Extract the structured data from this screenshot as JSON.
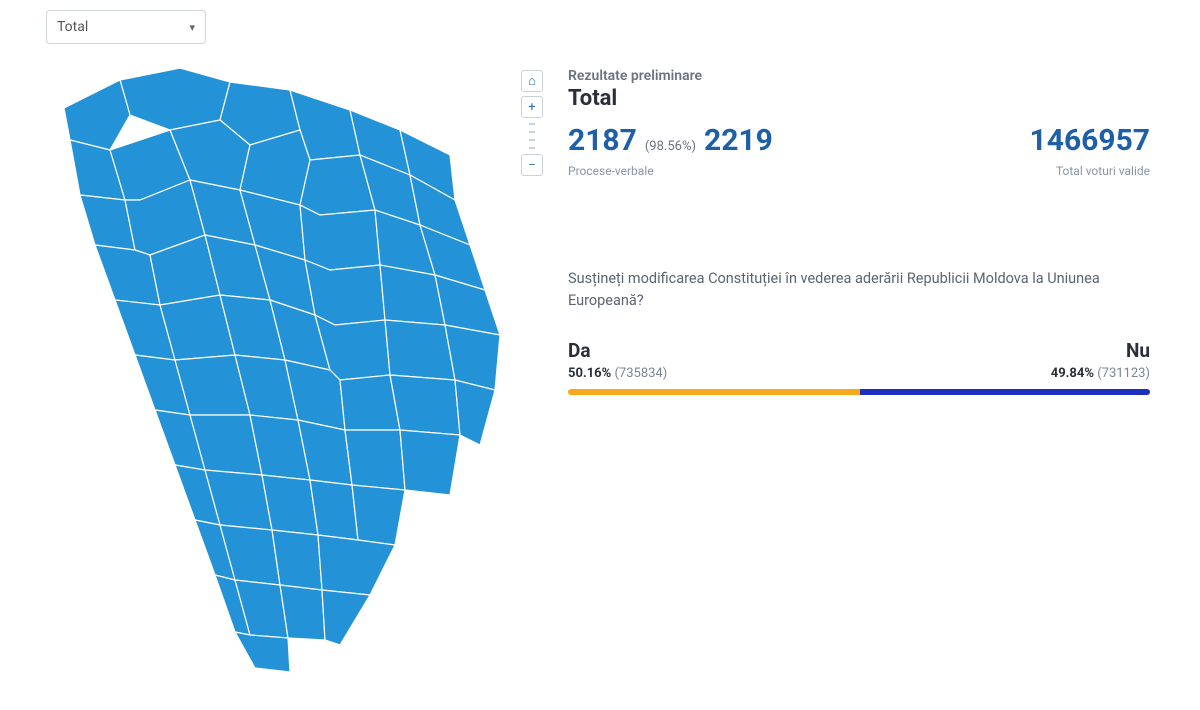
{
  "dropdown": {
    "selected": "Total"
  },
  "map": {
    "fill_color": "#2492d7",
    "stroke_color": "#ffffff"
  },
  "controls": {
    "home_glyph": "⌂",
    "zoom_in_glyph": "+",
    "zoom_out_glyph": "−"
  },
  "results": {
    "subtitle": "Rezultate preliminare",
    "title": "Total",
    "processed": {
      "count": "2187",
      "percent": "(98.56%)",
      "total": "2219",
      "label": "Procese-verbale"
    },
    "valid_votes": {
      "count": "1466957",
      "label": "Total voturi valide"
    },
    "question": "Susțineți modificarea Constituției în vederea aderării Republicii Moldova la Uniunea Europeană?",
    "yes": {
      "label": "Da",
      "percent": "50.16%",
      "count": "(735834)",
      "bar_color": "#f6a91b",
      "bar_width_pct": 50.16
    },
    "no": {
      "label": "Nu",
      "percent": "49.84%",
      "count": "(731123)",
      "bar_color": "#1e2fbf",
      "bar_width_pct": 49.84
    }
  }
}
